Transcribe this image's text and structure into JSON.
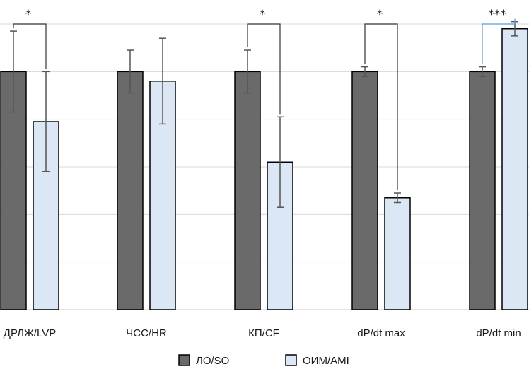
{
  "chart_data": {
    "type": "bar",
    "categories": [
      "ДРЛЖ/LVP",
      "ЧСС/HR",
      "КП/CF",
      "dP/dt max",
      "dP/dt min"
    ],
    "series": [
      {
        "name": "ЛО/SO",
        "color": "#6a6a6a",
        "values": [
          100,
          100,
          100,
          100,
          100
        ],
        "errors": [
          17,
          9,
          9,
          2,
          2
        ]
      },
      {
        "name": "ОИМ/AMI",
        "color": "#dbe7f5",
        "values": [
          79,
          96,
          62,
          47,
          118
        ],
        "errors": [
          21,
          18,
          19,
          2,
          3
        ]
      }
    ],
    "significance": [
      "*",
      "",
      "*",
      "*",
      "***"
    ],
    "ylim": [
      0,
      120
    ],
    "grid": true,
    "legend_position": "bottom-center",
    "title": "",
    "xlabel": "",
    "ylabel": ""
  }
}
